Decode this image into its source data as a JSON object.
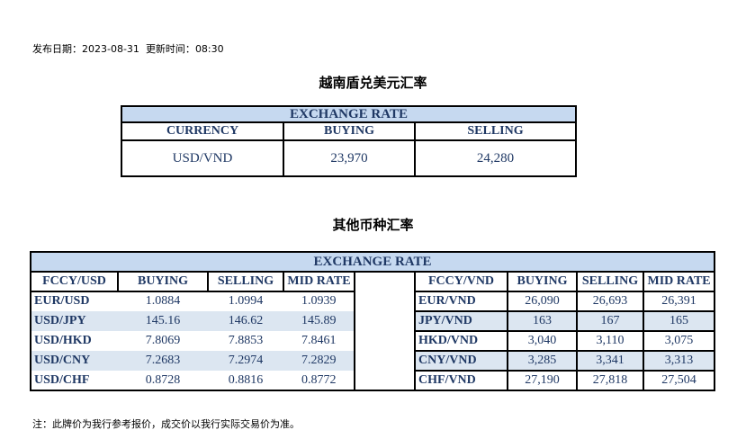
{
  "meta": {
    "publish_label": "发布日期：",
    "publish_date": "2023-08-31",
    "update_label": "更新时间：",
    "update_time": "08:30"
  },
  "usd_section": {
    "title": "越南盾兑美元汇率",
    "band": "EXCHANGE RATE",
    "headers": [
      "CURRENCY",
      "BUYING",
      "SELLING"
    ],
    "row": [
      "USD/VND",
      "23,970",
      "24,280"
    ]
  },
  "other_section": {
    "title": "其他币种汇率",
    "band": "EXCHANGE  RATE",
    "left_headers": [
      "FCCY/USD",
      "BUYING",
      "SELLING",
      "MID RATE"
    ],
    "right_headers": [
      "FCCY/VND",
      "BUYING",
      "SELLING",
      "MID RATE"
    ],
    "left_rows": [
      [
        "EUR/USD",
        "1.0884",
        "1.0994",
        "1.0939"
      ],
      [
        "USD/JPY",
        "145.16",
        "146.62",
        "145.89"
      ],
      [
        "USD/HKD",
        "7.8069",
        "7.8853",
        "7.8461"
      ],
      [
        "USD/CNY",
        "7.2683",
        "7.2974",
        "7.2829"
      ],
      [
        "USD/CHF",
        "0.8728",
        "0.8816",
        "0.8772"
      ]
    ],
    "right_rows": [
      [
        "EUR/VND",
        "26,090",
        "26,693",
        "26,391"
      ],
      [
        "JPY/VND",
        "163",
        "167",
        "165"
      ],
      [
        "HKD/VND",
        "3,040",
        "3,110",
        "3,075"
      ],
      [
        "CNY/VND",
        "3,285",
        "3,341",
        "3,313"
      ],
      [
        "CHF/VND",
        "27,190",
        "27,818",
        "27,504"
      ]
    ]
  },
  "footnote": "注：此牌价为我行参考报价，成交价以我行实际交易价为准。",
  "colors": {
    "band": "#c6d9f0",
    "text": "#1f3864",
    "stripe": "#dce6f1"
  }
}
